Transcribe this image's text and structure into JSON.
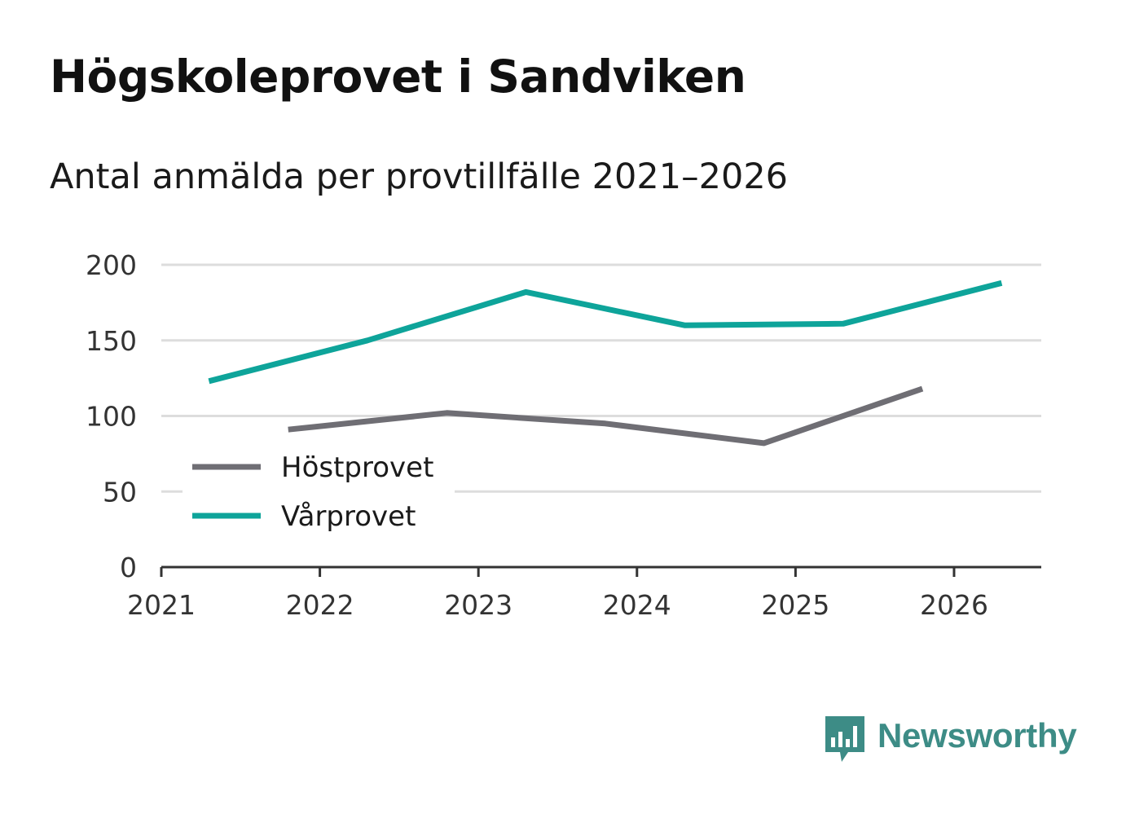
{
  "title": "Högskoleprovet i Sandviken",
  "subtitle": "Antal anmälda per provtillfälle 2021–2026",
  "chart_data": {
    "type": "line",
    "title": "Högskoleprovet i Sandviken",
    "subtitle": "Antal anmälda per provtillfälle 2021–2026",
    "xlabel": "",
    "ylabel": "",
    "ylim": [
      0,
      200
    ],
    "xlim": [
      2021,
      2026.55
    ],
    "yticks": [
      0,
      50,
      100,
      150,
      200
    ],
    "xticks": [
      2021,
      2022,
      2023,
      2024,
      2025,
      2026
    ],
    "y_tick_labels": [
      "0",
      "50",
      "100",
      "150",
      "200"
    ],
    "x_tick_labels": [
      "2021",
      "2022",
      "2023",
      "2024",
      "2025",
      "2026"
    ],
    "grid": true,
    "legend_position": "left",
    "series": [
      {
        "name": "Höstprovet",
        "color": "#6f6e74",
        "x": [
          2021.8,
          2022.8,
          2023.8,
          2024.8,
          2025.8
        ],
        "values": [
          91,
          102,
          95,
          82,
          118
        ]
      },
      {
        "name": "Vårprovet",
        "color": "#0ea49a",
        "x": [
          2021.3,
          2022.3,
          2023.3,
          2024.3,
          2025.3,
          2026.3
        ],
        "values": [
          123,
          150,
          182,
          160,
          161,
          188
        ]
      }
    ]
  },
  "legend": {
    "items": [
      {
        "label": "Höstprovet",
        "color": "#6f6e74"
      },
      {
        "label": "Vårprovet",
        "color": "#0ea49a"
      }
    ]
  },
  "brand": {
    "name": "Newsworthy",
    "color": "#3d8c86",
    "icon": "bar-chart-speech-bubble-icon"
  }
}
